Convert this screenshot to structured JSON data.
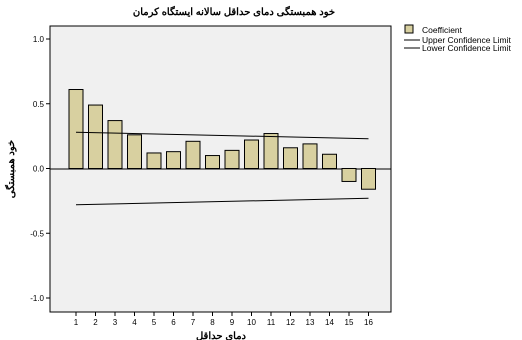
{
  "chart_data": {
    "type": "bar",
    "title": "خود همبستگی دمای حداقل سالانه ایستگاه کرمان",
    "xlabel": "دمای حداقل",
    "ylabel": "خود همبستگی",
    "categories": [
      "1",
      "2",
      "3",
      "4",
      "5",
      "6",
      "7",
      "8",
      "9",
      "10",
      "11",
      "12",
      "13",
      "14",
      "15",
      "16"
    ],
    "series": [
      {
        "name": "Coefficient",
        "values": [
          0.61,
          0.49,
          0.37,
          0.26,
          0.12,
          0.13,
          0.21,
          0.1,
          0.14,
          0.22,
          0.27,
          0.16,
          0.19,
          0.11,
          -0.1,
          -0.16
        ]
      }
    ],
    "confidence_limits": {
      "upper": {
        "name": "Upper Confidence Limit",
        "start": 0.28,
        "end": 0.23
      },
      "lower": {
        "name": "Lower Confidence Limit",
        "start": -0.28,
        "end": -0.23
      }
    },
    "yticks": [
      "1.0",
      "0.5",
      "0.0",
      "-0.5",
      "-1.0"
    ],
    "ytick_values": [
      1.0,
      0.5,
      0.0,
      -0.5,
      -1.0
    ],
    "ylim": [
      -1.0,
      1.0
    ],
    "grid": false,
    "legend_position": "top-right",
    "colors": {
      "bar_fill": "#d8d0a0",
      "bar_stroke": "#000000",
      "plot_background": "#f0f0f0",
      "line": "#000000"
    }
  }
}
